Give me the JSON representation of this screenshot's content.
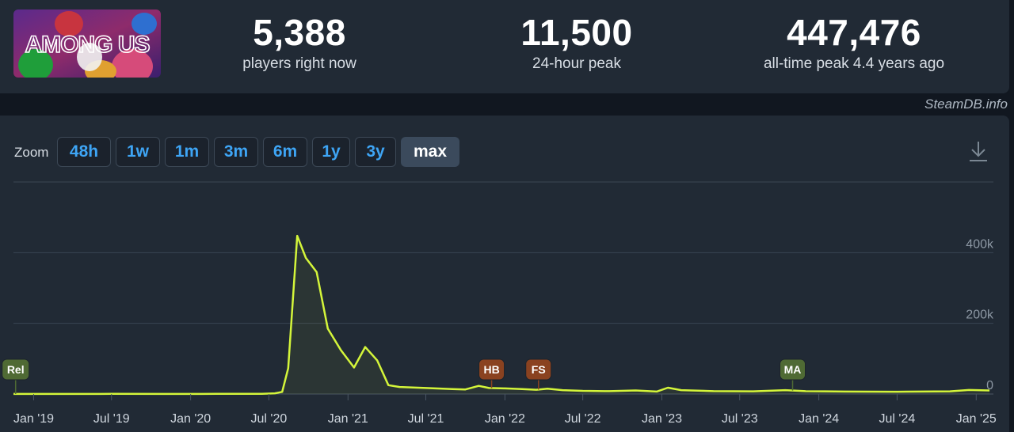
{
  "game": {
    "logo_text": "AMONG US"
  },
  "stats": {
    "current": {
      "value": "5,388",
      "label": "players right now"
    },
    "peak24": {
      "value": "11,500",
      "label": "24-hour peak"
    },
    "alltime": {
      "value": "447,476",
      "label": "all-time peak 4.4 years ago"
    }
  },
  "credit": "SteamDB.info",
  "zoom": {
    "label": "Zoom",
    "options": [
      "48h",
      "1w",
      "1m",
      "3m",
      "6m",
      "1y",
      "3y",
      "max"
    ],
    "active": "max"
  },
  "icons": {
    "download": "download-icon"
  },
  "colors": {
    "line": "#d4f53a",
    "background": "#212a35"
  },
  "chart_data": {
    "type": "line",
    "x_axis": "date",
    "x_tick_labels": [
      "Jan '19",
      "Jul '19",
      "Jan '20",
      "Jul '20",
      "Jan '21",
      "Jul '21",
      "Jan '22",
      "Jul '22",
      "Jan '23",
      "Jul '23",
      "Jan '24",
      "Jul '24",
      "Jan '25"
    ],
    "x_tick_dates": [
      "2019-01-01",
      "2019-07-01",
      "2020-01-01",
      "2020-07-01",
      "2021-01-01",
      "2021-07-01",
      "2022-01-01",
      "2022-07-01",
      "2023-01-01",
      "2023-07-01",
      "2024-01-01",
      "2024-07-01",
      "2025-01-01"
    ],
    "y_ticks": [
      0,
      200000,
      400000
    ],
    "y_tick_labels": [
      "0",
      "200k",
      "400k"
    ],
    "xlim": [
      "2018-11-15",
      "2025-02-10"
    ],
    "ylim": [
      0,
      600000
    ],
    "grid": true,
    "series": [
      {
        "points": [
          [
            "2018-11-15",
            200
          ],
          [
            "2019-03-01",
            300
          ],
          [
            "2019-07-01",
            400
          ],
          [
            "2019-11-01",
            300
          ],
          [
            "2020-03-01",
            400
          ],
          [
            "2020-06-15",
            600
          ],
          [
            "2020-07-15",
            2000
          ],
          [
            "2020-08-01",
            6000
          ],
          [
            "2020-08-15",
            73000
          ],
          [
            "2020-09-05",
            447476
          ],
          [
            "2020-09-25",
            385000
          ],
          [
            "2020-10-20",
            345000
          ],
          [
            "2020-11-15",
            185000
          ],
          [
            "2020-12-15",
            125000
          ],
          [
            "2021-01-15",
            75000
          ],
          [
            "2021-02-10",
            133000
          ],
          [
            "2021-03-10",
            95000
          ],
          [
            "2021-04-05",
            25000
          ],
          [
            "2021-05-01",
            20000
          ],
          [
            "2021-07-01",
            17000
          ],
          [
            "2021-09-01",
            14000
          ],
          [
            "2021-10-01",
            13000
          ],
          [
            "2021-11-01",
            23000
          ],
          [
            "2021-11-25",
            17000
          ],
          [
            "2022-01-01",
            16000
          ],
          [
            "2022-02-10",
            14000
          ],
          [
            "2022-03-15",
            12000
          ],
          [
            "2022-04-10",
            15000
          ],
          [
            "2022-05-15",
            11000
          ],
          [
            "2022-07-01",
            9000
          ],
          [
            "2022-09-01",
            8000
          ],
          [
            "2022-11-01",
            10000
          ],
          [
            "2022-12-20",
            7000
          ],
          [
            "2023-01-15",
            18000
          ],
          [
            "2023-02-15",
            11000
          ],
          [
            "2023-05-01",
            8000
          ],
          [
            "2023-08-01",
            7500
          ],
          [
            "2023-10-15",
            11000
          ],
          [
            "2023-12-01",
            8000
          ],
          [
            "2024-03-01",
            7000
          ],
          [
            "2024-07-01",
            6500
          ],
          [
            "2024-11-01",
            7500
          ],
          [
            "2024-12-15",
            11500
          ],
          [
            "2025-02-01",
            10000
          ]
        ]
      }
    ],
    "annotations": [
      {
        "label": "Rel",
        "date": "2018-11-20",
        "color": "#4f6a34"
      },
      {
        "label": "HB",
        "date": "2021-12-01",
        "color": "#8a4220"
      },
      {
        "label": "FS",
        "date": "2022-03-20",
        "color": "#8a4220"
      },
      {
        "label": "MA",
        "date": "2023-11-01",
        "color": "#4f6a34"
      }
    ]
  }
}
